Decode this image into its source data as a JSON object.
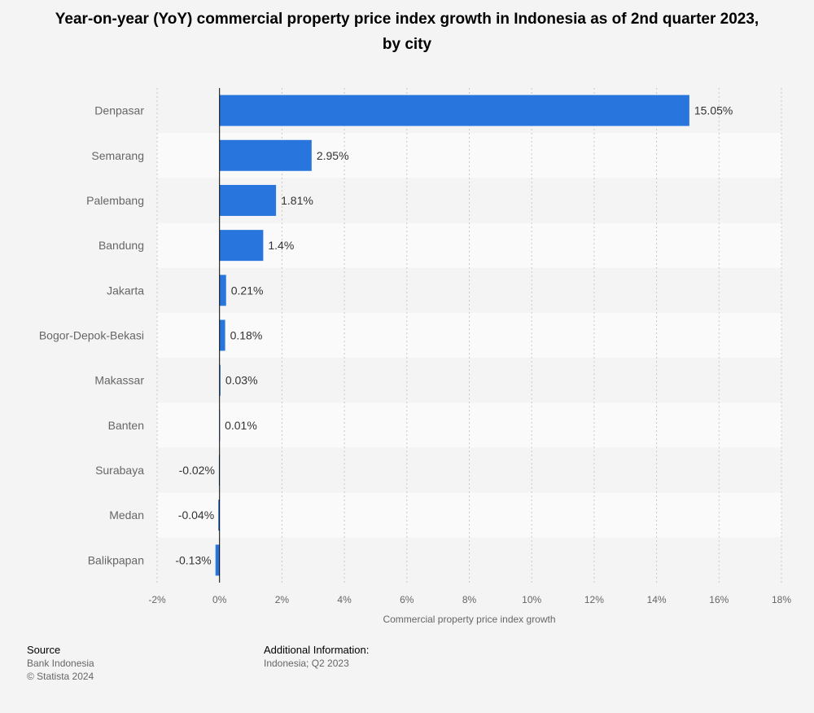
{
  "title": "Year-on-year (YoY) commercial property price index growth in Indonesia as of 2nd quarter 2023, by city",
  "colors": {
    "bar": "#2876dd",
    "background": "#f4f4f4",
    "band_light": "#fafafa",
    "grid": "#c8c8c8",
    "axis_text": "#666666",
    "label_text": "#333333"
  },
  "chart_data": {
    "type": "bar",
    "orientation": "horizontal",
    "categories": [
      "Denpasar",
      "Semarang",
      "Palembang",
      "Bandung",
      "Jakarta",
      "Bogor-Depok-Bekasi",
      "Makassar",
      "Banten",
      "Surabaya",
      "Medan",
      "Balikpapan"
    ],
    "values": [
      15.05,
      2.95,
      1.81,
      1.4,
      0.21,
      0.18,
      0.03,
      0.01,
      -0.02,
      -0.04,
      -0.13
    ],
    "data_labels": [
      "15.05%",
      "2.95%",
      "1.81%",
      "1.4%",
      "0.21%",
      "0.18%",
      "0.03%",
      "0.01%",
      "-0.02%",
      "-0.04%",
      "-0.13%"
    ],
    "xlim": [
      -2,
      18
    ],
    "xticks": [
      -2,
      0,
      2,
      4,
      6,
      8,
      10,
      12,
      14,
      16,
      18
    ],
    "xtick_labels": [
      "-2%",
      "0%",
      "2%",
      "4%",
      "6%",
      "8%",
      "10%",
      "12%",
      "14%",
      "16%",
      "18%"
    ],
    "xlabel": "Commercial property price index growth",
    "ylabel": "",
    "grid": true,
    "legend": "none"
  },
  "footer": {
    "source_heading": "Source",
    "source_name": "Bank Indonesia",
    "copyright": "© Statista 2024",
    "info_heading": "Additional Information:",
    "info_text": "Indonesia; Q2 2023"
  }
}
